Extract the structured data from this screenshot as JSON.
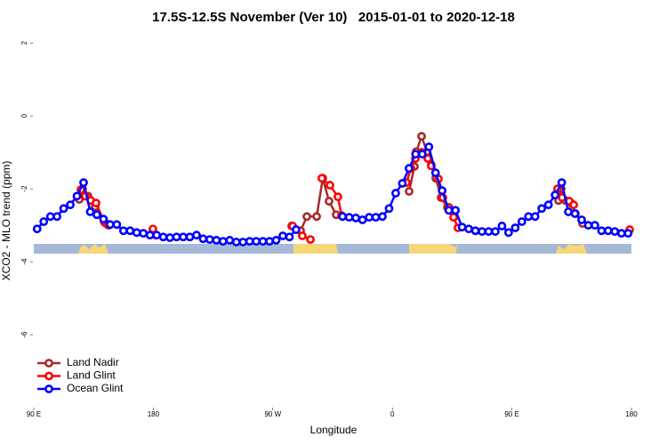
{
  "chart_data": {
    "type": "line",
    "title": "17.5S-12.5S November (Ver 10)   2015-01-01 to 2020-12-18",
    "x_label": "Longitude",
    "y_label": "XCO2 - MLO trend (ppm)",
    "xlim": [
      90,
      540
    ],
    "ylim": [
      -8,
      2.25
    ],
    "xticks": [
      {
        "value": 90,
        "label": "90 E"
      },
      {
        "value": 180,
        "label": "180"
      },
      {
        "value": 270,
        "label": "90 W"
      },
      {
        "value": 360,
        "label": "0"
      },
      {
        "value": 450,
        "label": "90 E"
      },
      {
        "value": 540,
        "label": "180"
      }
    ],
    "yticks": [
      -6,
      -4,
      -2,
      0,
      2
    ],
    "legend": "bottomleft",
    "series": [
      {
        "name": "Land Nadir",
        "color": "#a52a2a",
        "x": [
          124.2,
          126.8,
          130.8,
          136.2,
          143.6,
          146.3,
          null,
          284.2,
          290.9,
          295.6,
          303,
          307.6,
          312.3,
          317.7,
          null,
          372.6,
          376.6,
          378,
          382,
          386,
          389.3,
          392.7,
          396.7,
          401.4,
          406.7,
          null,
          485.1,
          487.1,
          490.4,
          494.5,
          497.8,
          503.2
        ],
        "values": [
          -2.29,
          -2.0,
          -2.2,
          -2.49,
          -2.93,
          -3.0,
          null,
          -3.02,
          -3.15,
          -2.76,
          -2.76,
          -1.71,
          -2.34,
          -2.71,
          null,
          -2.07,
          -1.39,
          -0.98,
          -0.56,
          -0.98,
          -1.34,
          -1.71,
          -2.24,
          -2.51,
          -2.76,
          null,
          -2.32,
          -2.0,
          -2.32,
          -2.39,
          -2.68,
          -2.95
        ]
      },
      {
        "name": "Land Glint",
        "color": "#ff0000",
        "x": [
          125.5,
          128.8,
          132.9,
          136.9,
          142.9,
          145.6,
          null,
          179.7,
          181.7,
          null,
          284.9,
          292.2,
          298.3,
          null,
          306.9,
          313,
          319,
          321.7,
          null,
          370.6,
          374,
          377.3,
          382,
          386.7,
          389.3,
          394.7,
          398,
          402.7,
          406.1,
          409.4,
          null,
          484.4,
          487.8,
          493.2,
          496.5,
          null,
          538.7
        ],
        "values": [
          -2.02,
          -2.2,
          -2.32,
          -2.39,
          -2.9,
          -2.98,
          null,
          -3.1,
          -3.27,
          null,
          -3.02,
          -3.29,
          -3.39,
          null,
          -1.71,
          -1.9,
          -2.22,
          -2.73,
          null,
          -1.83,
          -1.44,
          -1.17,
          -1.0,
          -1.17,
          -1.37,
          -1.73,
          -2.24,
          -2.51,
          -2.78,
          -3.07,
          null,
          -2.0,
          -2.24,
          -2.34,
          -2.44,
          null,
          -3.12
        ]
      },
      {
        "name": "Ocean Glint",
        "color": "#0000ff",
        "x": [
          92.5,
          97.5,
          102.5,
          107.5,
          112.5,
          117.5,
          122.5,
          127.5,
          132.5,
          137.5,
          142.5,
          147.5,
          152.5,
          157.5,
          162.5,
          167.5,
          172.5,
          177.5,
          182.5,
          187.5,
          192.5,
          197.5,
          202.5,
          207.5,
          212.5,
          217.5,
          222.5,
          227.5,
          232.5,
          237.5,
          242.5,
          247.5,
          252.5,
          257.5,
          262.5,
          267.5,
          272.5,
          277.5,
          282.5,
          287.5,
          292.5,
          297.5,
          302.5,
          307.5,
          312.5,
          317.5,
          322.5,
          327.5,
          332.5,
          337.5,
          342.5,
          347.5,
          352.5,
          357.5,
          362.5,
          367.5,
          372.5,
          377.5,
          382.5,
          387.5,
          392.5,
          397.5,
          402.5,
          407.5,
          412.5,
          417.5,
          422.5,
          427.5,
          432.5,
          437.5,
          442.5,
          447.5,
          452.5,
          457.5,
          462.5,
          467.5,
          472.5,
          477.5,
          482.5,
          487.5,
          492.5,
          497.5,
          502.5,
          507.5,
          512.5,
          517.5,
          522.5,
          527.5,
          532.5,
          537.5
        ],
        "values": [
          -3.1,
          -2.9,
          -2.76,
          -2.76,
          -2.54,
          -2.44,
          -2.2,
          -1.83,
          -2.63,
          -2.71,
          -2.83,
          -2.98,
          -2.98,
          -3.15,
          -3.15,
          -3.2,
          -3.22,
          -3.27,
          -3.27,
          -3.32,
          -3.34,
          -3.32,
          -3.32,
          -3.32,
          -3.27,
          -3.37,
          -3.39,
          -3.41,
          -3.44,
          -3.41,
          -3.46,
          -3.46,
          -3.44,
          -3.44,
          -3.44,
          -3.44,
          -3.41,
          -3.29,
          -3.32,
          -3.12,
          null,
          null,
          null,
          null,
          null,
          null,
          -2.76,
          -2.78,
          -2.8,
          -2.85,
          -2.78,
          -2.78,
          -2.76,
          -2.54,
          -2.12,
          -1.85,
          -1.44,
          -1.05,
          -1.05,
          -0.85,
          -1.56,
          -2.05,
          -2.59,
          -2.59,
          -3.05,
          -3.1,
          -3.15,
          -3.17,
          -3.17,
          -3.17,
          -3.02,
          -3.2,
          -3.07,
          -2.9,
          -2.76,
          -2.76,
          -2.54,
          -2.44,
          -2.17,
          -1.83,
          -2.63,
          -2.68,
          -2.85,
          -3.0,
          -3.0,
          -3.15,
          -3.15,
          -3.17,
          -3.22,
          -3.22
        ]
      }
    ]
  }
}
